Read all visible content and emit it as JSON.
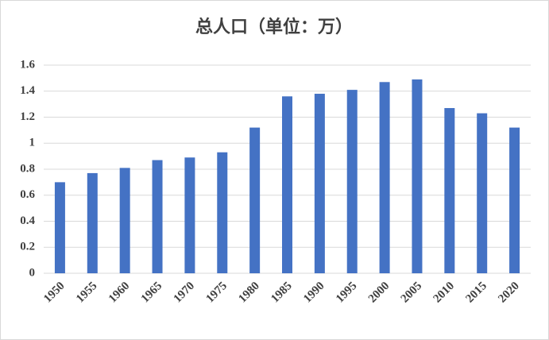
{
  "chart_data": {
    "type": "bar",
    "title": "总人口（单位：万）",
    "categories": [
      "1950",
      "1955",
      "1960",
      "1965",
      "1970",
      "1975",
      "1980",
      "1985",
      "1990",
      "1995",
      "2000",
      "2005",
      "2010",
      "2015",
      "2020"
    ],
    "values": [
      0.7,
      0.77,
      0.81,
      0.87,
      0.89,
      0.93,
      1.12,
      1.36,
      1.38,
      1.41,
      1.47,
      1.49,
      1.27,
      1.23,
      1.12
    ],
    "color": "#4472c4",
    "ylim": [
      0,
      1.6
    ],
    "yticks": [
      0,
      0.2,
      0.4,
      0.6,
      0.8,
      1,
      1.2,
      1.4,
      1.6
    ],
    "grid": true
  }
}
